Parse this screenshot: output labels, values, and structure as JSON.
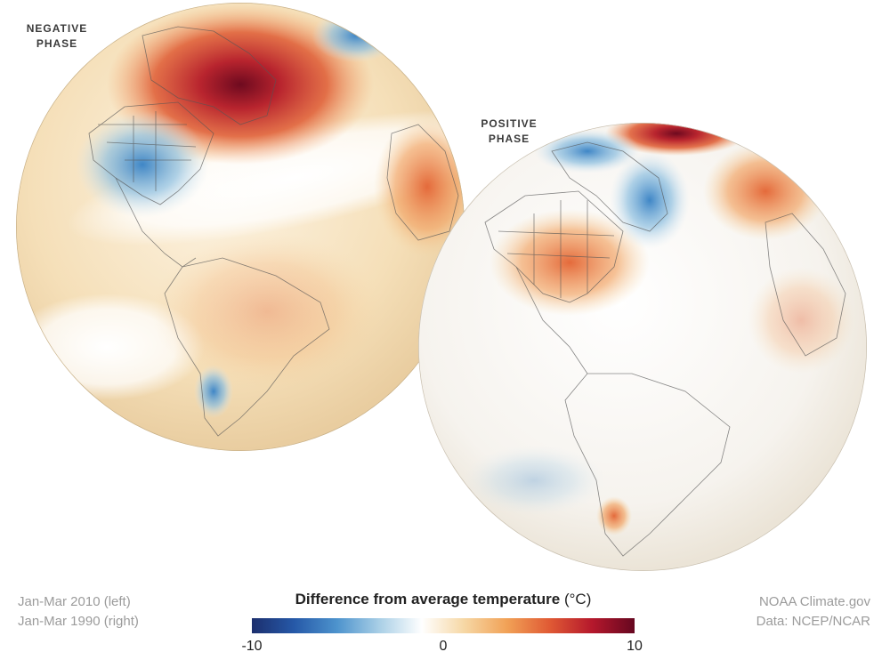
{
  "globes": [
    {
      "id": "left",
      "label": "NEGATIVE\nPHASE"
    },
    {
      "id": "right",
      "label": "POSITIVE\nPHASE"
    }
  ],
  "footer": {
    "left_line1": "Jan-Mar 2010 (left)",
    "left_line2": "Jan-Mar 1990 (right)",
    "right_line1": "NOAA Climate.gov",
    "right_line2": "Data: NCEP/NCAR"
  },
  "legend": {
    "title": "Difference from average temperature",
    "unit": "(°C)",
    "min_label": "-10",
    "mid_label": "0",
    "max_label": "10",
    "colors": [
      "#1c2f6e",
      "#2659a8",
      "#4d93cd",
      "#a9cfe6",
      "#ffffff",
      "#f6d7a4",
      "#f1a156",
      "#e05a34",
      "#b5182c",
      "#660720"
    ]
  }
}
